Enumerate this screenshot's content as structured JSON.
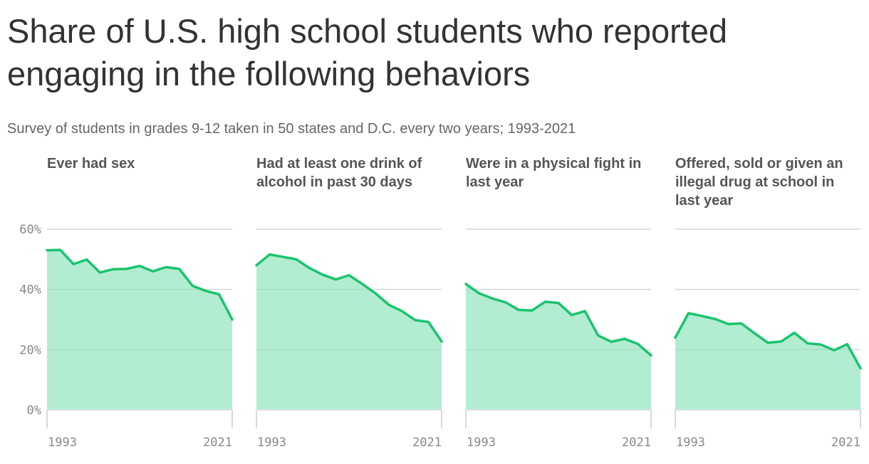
{
  "title": "Share of U.S. high school students who reported engaging in the following behaviors",
  "subtitle": "Survey of students in grades 9-12 taken in 50 states and D.C. every two years; 1993-2021",
  "colors": {
    "line": "#19c46e",
    "area": "#b3edd1",
    "grid": "#e4e4e4",
    "baseline": "#dddddd"
  },
  "chart_data": {
    "type": "area",
    "x": [
      1993,
      1995,
      1997,
      1999,
      2001,
      2003,
      2005,
      2007,
      2009,
      2011,
      2013,
      2015,
      2017,
      2019,
      2021
    ],
    "x_tick_labels": [
      "1993",
      "2021"
    ],
    "y_tick_labels": [
      "60%",
      "40%",
      "20%",
      "0%"
    ],
    "y_ticks": [
      60,
      40,
      20,
      0
    ],
    "ylim": [
      0,
      60
    ],
    "grid": true,
    "series": [
      {
        "name": "Ever had sex",
        "values": [
          53.0,
          53.1,
          48.4,
          49.9,
          45.6,
          46.7,
          46.8,
          47.8,
          46.0,
          47.4,
          46.8,
          41.2,
          39.5,
          38.4,
          30.0
        ]
      },
      {
        "name": "Had at least one drink of alcohol in past 30 days",
        "values": [
          48.0,
          51.6,
          50.8,
          50.0,
          47.1,
          44.9,
          43.3,
          44.7,
          41.8,
          38.7,
          34.9,
          32.8,
          29.8,
          29.2,
          22.7
        ]
      },
      {
        "name": "Were in a physical fight in last year",
        "values": [
          41.8,
          38.7,
          37.0,
          35.7,
          33.2,
          33.0,
          35.9,
          35.5,
          31.5,
          32.8,
          24.7,
          22.6,
          23.6,
          21.9,
          18.1
        ]
      },
      {
        "name": "Offered, sold or given an illegal drug at school in last year",
        "values": [
          24.0,
          32.1,
          31.2,
          30.2,
          28.5,
          28.7,
          25.4,
          22.3,
          22.7,
          25.6,
          22.1,
          21.7,
          19.8,
          21.8,
          13.8
        ]
      }
    ]
  }
}
